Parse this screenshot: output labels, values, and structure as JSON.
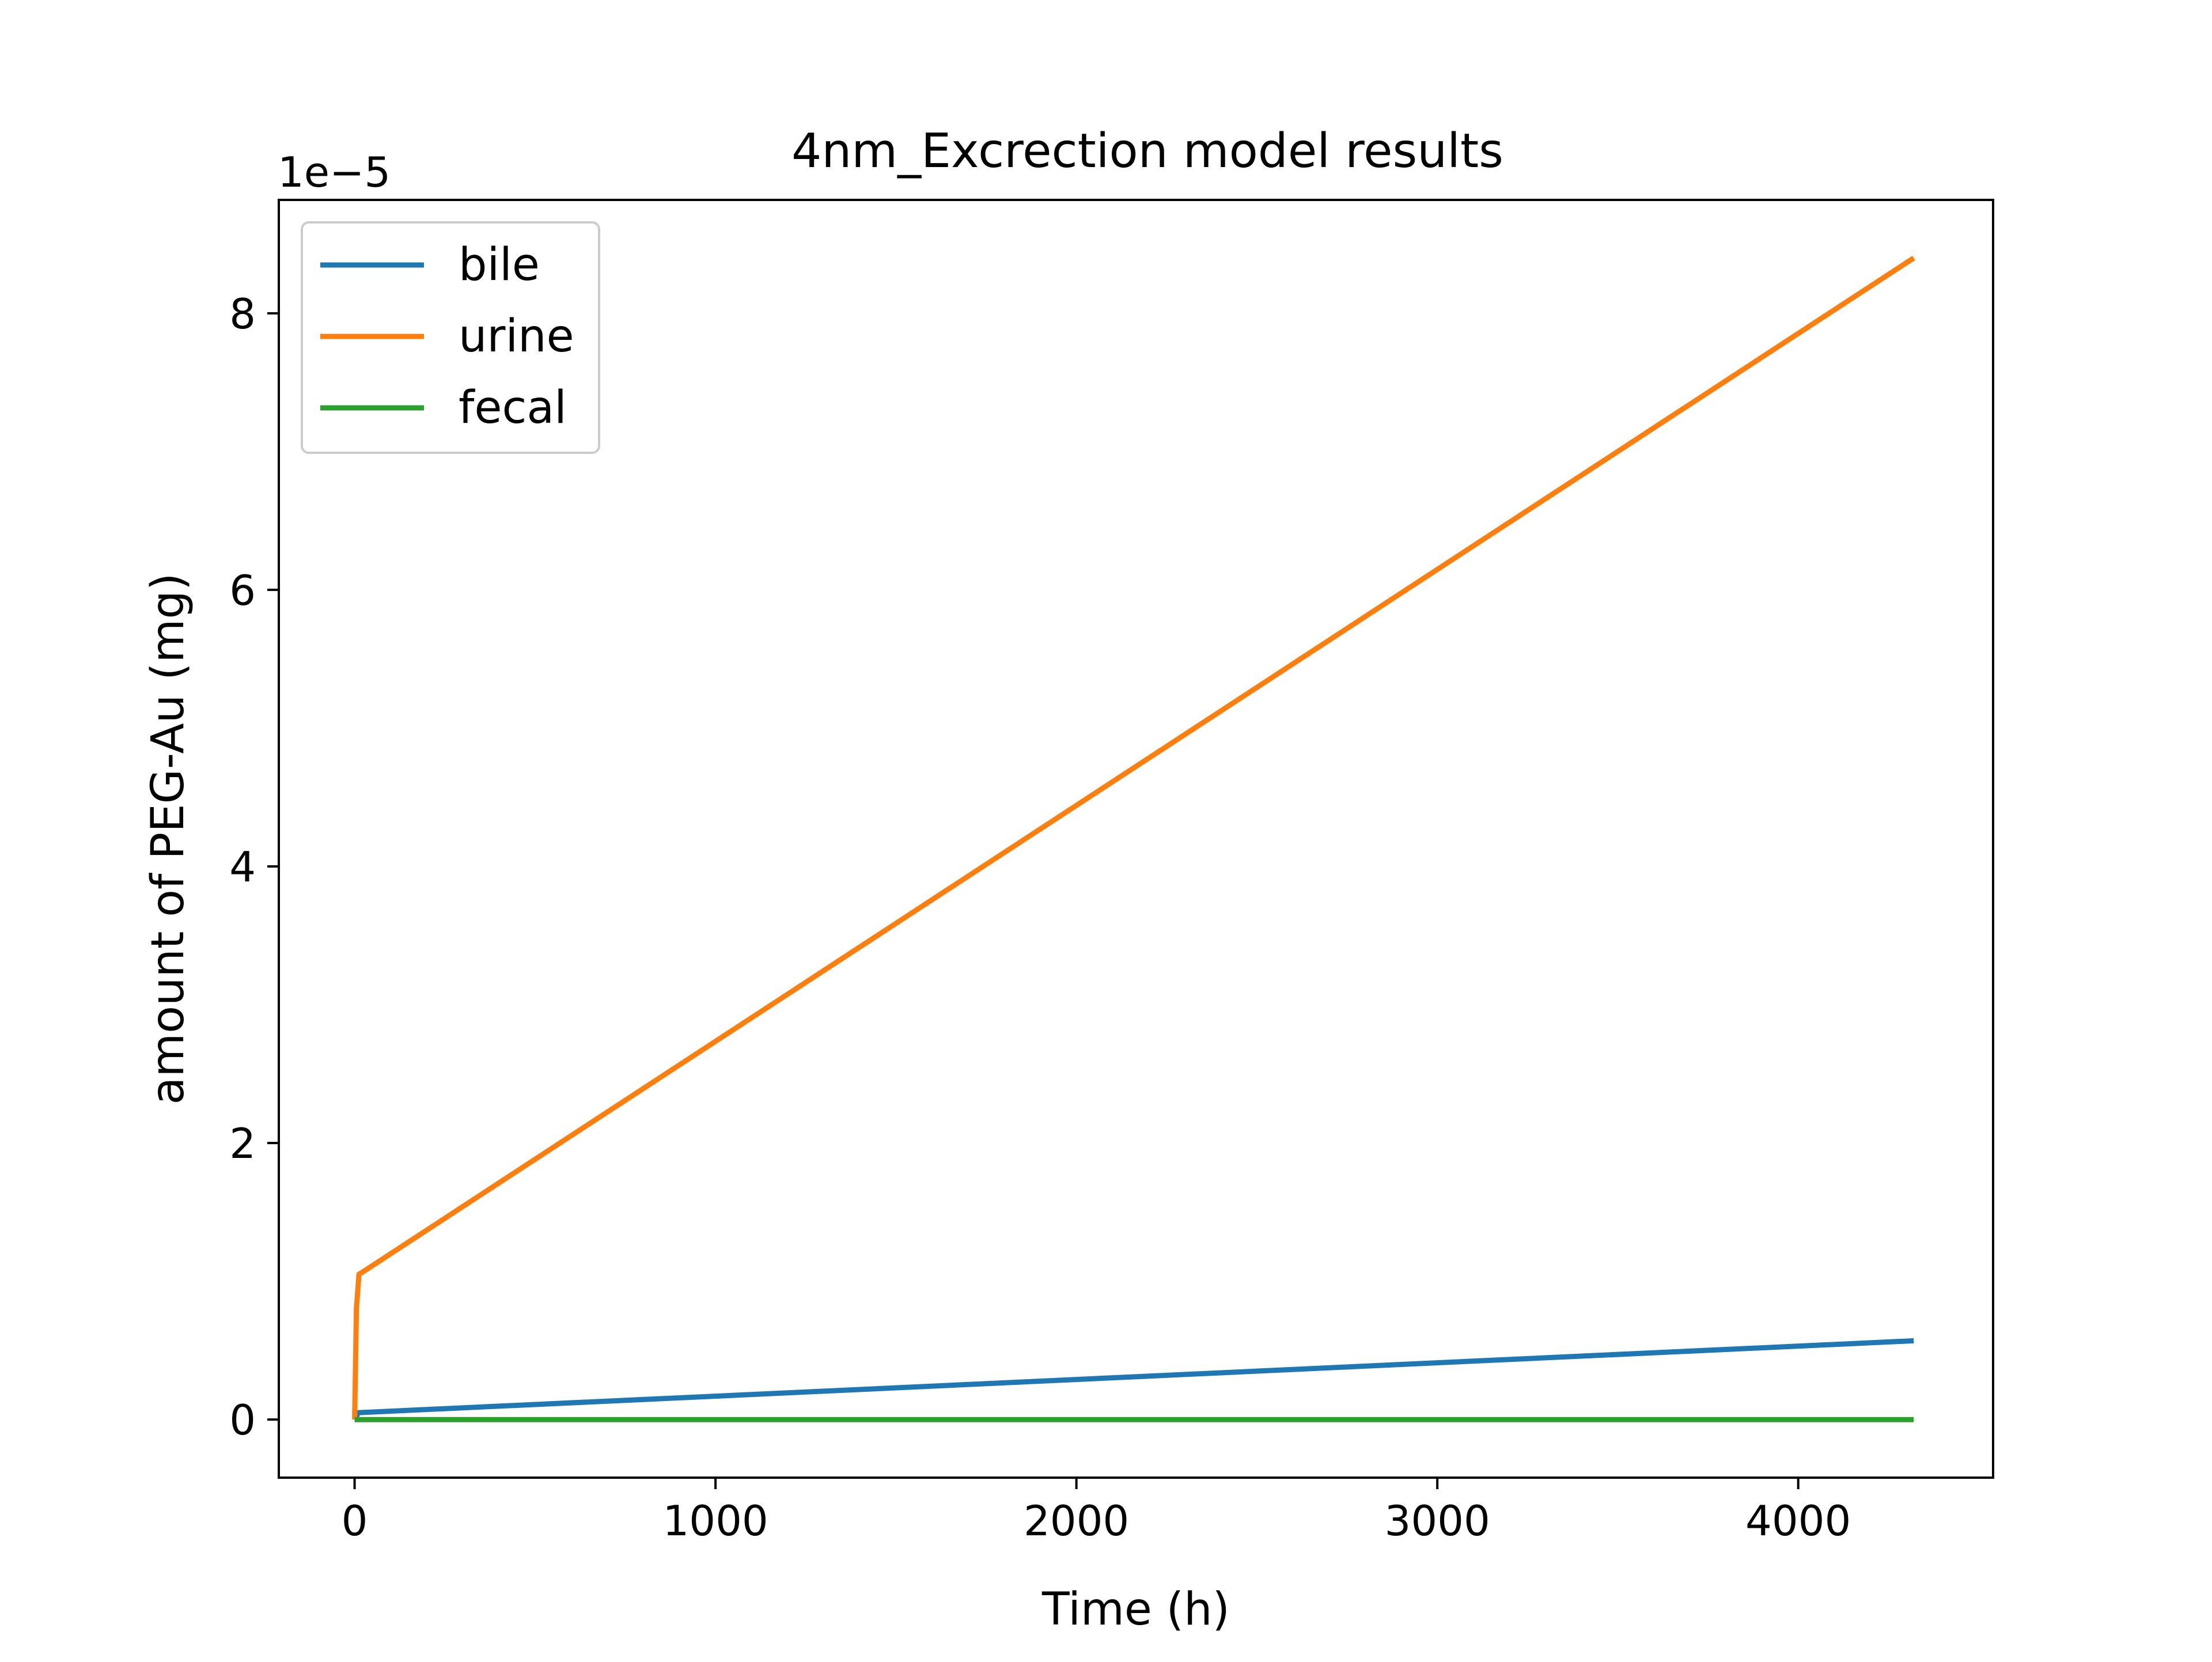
{
  "chart_data": {
    "type": "line",
    "title": "4nm_Excrection model results",
    "xlabel": "Time (h)",
    "ylabel": "amount of PEG-Au (mg)",
    "y_offset_label": "1e−5",
    "y_scale_factor": 1e-05,
    "xlim": [
      -210,
      4540
    ],
    "ylim": [
      -0.42,
      8.82
    ],
    "xticks": [
      0,
      1000,
      2000,
      3000,
      4000
    ],
    "xtick_labels": [
      "0",
      "1000",
      "2000",
      "3000",
      "4000"
    ],
    "yticks": [
      0,
      2,
      4,
      6,
      8
    ],
    "ytick_labels": [
      "0",
      "2",
      "4",
      "6",
      "8"
    ],
    "grid": false,
    "legend_position": "upper-left",
    "series": [
      {
        "name": "bile",
        "color": "#1f77b4",
        "x": [
          0,
          2,
          10,
          4320
        ],
        "y": [
          0,
          0.0,
          0.05,
          0.57
        ]
      },
      {
        "name": "urine",
        "color": "#ff7f0e",
        "x": [
          0,
          2,
          5,
          12,
          30,
          4320
        ],
        "y": [
          0,
          0.3,
          0.8,
          1.05,
          1.08,
          8.4
        ]
      },
      {
        "name": "fecal",
        "color": "#2ca02c",
        "x": [
          0,
          4320
        ],
        "y": [
          0,
          0
        ]
      }
    ]
  }
}
